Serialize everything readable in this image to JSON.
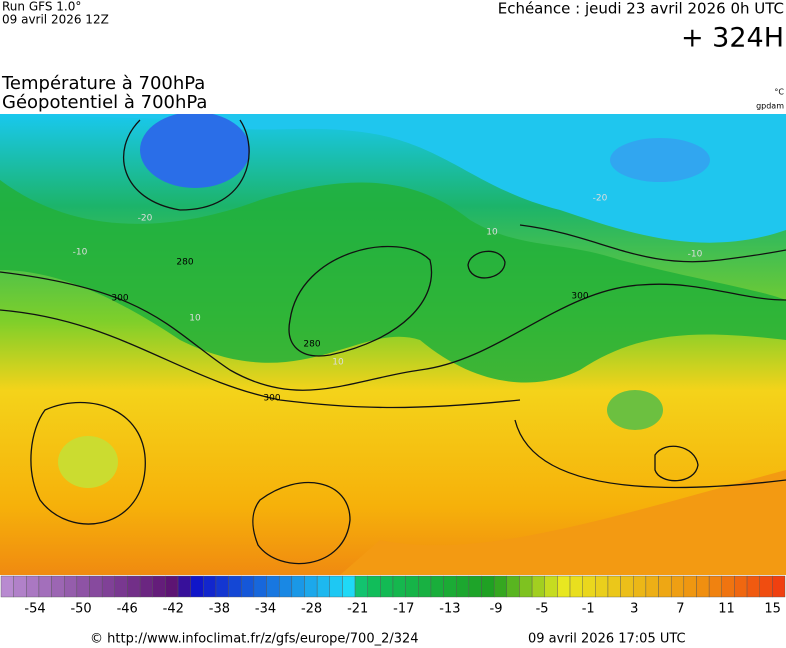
{
  "header": {
    "run": "Run GFS 1.0°",
    "run_date": "09 avril 2026 12Z",
    "echeance": "Echéance : jeudi 23 avril 2026 0h UTC",
    "step": "+ 324H",
    "title_temp": "Température à 700hPa",
    "title_geo": "Géopotentiel à 700hPa",
    "unit_temp": "°C",
    "unit_geo": "gpdam"
  },
  "map": {
    "contour_labels": [
      300,
      280,
      280,
      300,
      300,
      -20,
      -20,
      -10,
      -10,
      10,
      10,
      10
    ]
  },
  "colorbar": {
    "labels": [
      -54,
      -50,
      -46,
      -42,
      -38,
      -34,
      -28,
      -21,
      -17,
      -13,
      -9,
      -5,
      -1,
      3,
      7,
      11,
      15
    ]
  },
  "footer": {
    "source": "© http://www.infoclimat.fr/z/gfs/europe/700_2/324",
    "date": "09 avril 2026 17:05 UTC"
  }
}
